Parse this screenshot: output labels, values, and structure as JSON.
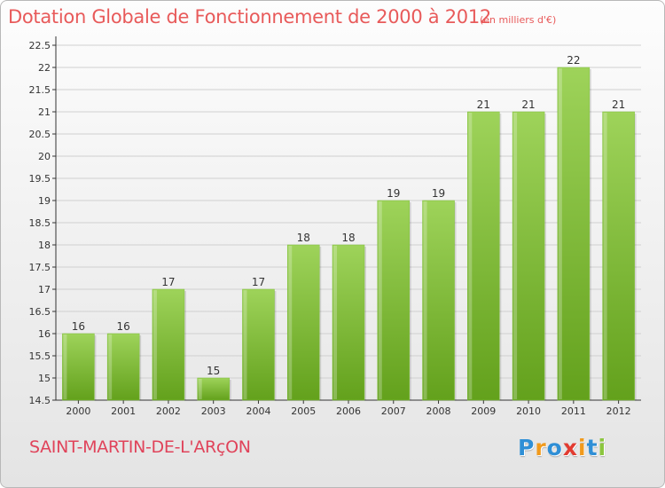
{
  "title": "Dotation Globale de Fonctionnement de 2000 à 2012",
  "unit_note": "(en milliers d'€)",
  "commune": "SAINT-MARTIN-DE-L'ARçON",
  "logo": {
    "text": "Proxiti",
    "letters": [
      "P",
      "r",
      "o",
      "x",
      "i",
      "t",
      "i"
    ]
  },
  "colors": {
    "bar_top": "#9ed35a",
    "bar_bottom": "#63a11c",
    "title": "#e85a5a",
    "axis": "#333333",
    "grid": "#d0d0d0"
  },
  "chart_data": {
    "type": "bar",
    "categories": [
      "2000",
      "2001",
      "2002",
      "2003",
      "2004",
      "2005",
      "2006",
      "2007",
      "2008",
      "2009",
      "2010",
      "2011",
      "2012"
    ],
    "values": [
      16,
      16,
      17,
      15,
      17,
      18,
      18,
      19,
      19,
      21,
      21,
      22,
      21
    ],
    "data_labels": [
      "16",
      "16",
      "17",
      "15",
      "17",
      "18",
      "18",
      "19",
      "19",
      "21",
      "21",
      "22",
      "21"
    ],
    "yticks": [
      "14.5",
      "15",
      "15.5",
      "16",
      "16.5",
      "17",
      "17.5",
      "18",
      "18.5",
      "19",
      "19.5",
      "20",
      "20.5",
      "21",
      "21.5",
      "22",
      "22.5"
    ],
    "ylim": [
      14.5,
      22.5
    ],
    "grid": true,
    "legend": "none"
  }
}
